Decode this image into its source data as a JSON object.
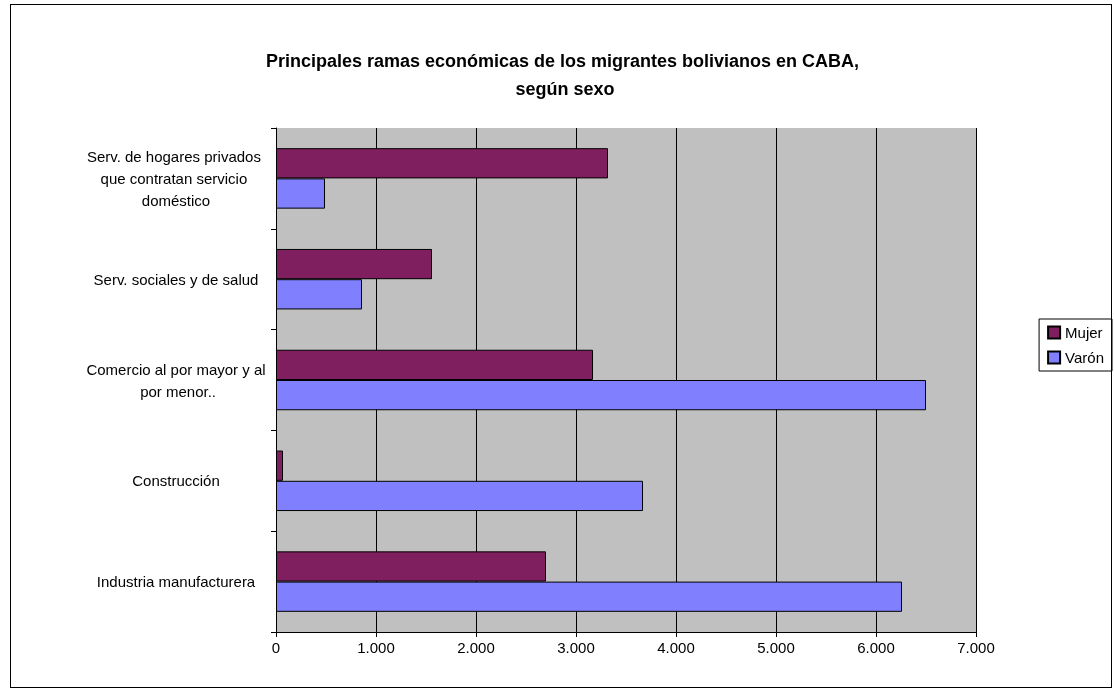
{
  "chart_data": {
    "type": "bar",
    "orientation": "horizontal",
    "title": "Principales ramas económicas de los migrantes bolivianos en CABA, según sexo",
    "categories": [
      "Serv. de hogares privados que contratan servicio doméstico",
      "Serv. sociales y de salud",
      "Comercio al por mayor y al por menor..",
      "Construcción",
      "Industria manufacturera"
    ],
    "series": [
      {
        "name": "Mujer",
        "color": "#7f1f5f",
        "values": [
          3320,
          1560,
          3170,
          70,
          2700
        ]
      },
      {
        "name": "Varón",
        "color": "#8080ff",
        "values": [
          490,
          860,
          6500,
          3670,
          6260
        ]
      }
    ],
    "xlim": [
      0,
      7000
    ],
    "xticks": [
      0,
      {
        "value": 1000,
        "label": "1.000"
      },
      {
        "value": 2000,
        "label": "2.000"
      },
      {
        "value": 3000,
        "label": "3.000"
      },
      {
        "value": 4000,
        "label": "4.000"
      },
      {
        "value": 5000,
        "label": "5.000"
      },
      {
        "value": 6000,
        "label": "6.000"
      },
      {
        "value": 7000,
        "label": "7.000"
      }
    ],
    "grid": "x",
    "legend": "right"
  }
}
